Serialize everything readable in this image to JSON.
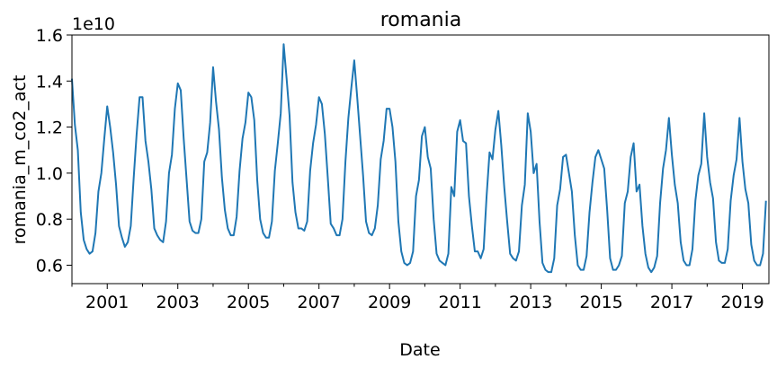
{
  "chart_data": {
    "type": "line",
    "title": "romania",
    "xlabel": "Date",
    "ylabel": "romania_m_co2_act",
    "y_scale_label": "1e10",
    "grid": false,
    "legend": "none",
    "line_color": "#1f77b4",
    "xlim": [
      "2000-01",
      "2019-10"
    ],
    "ylim": [
      0.52,
      1.6
    ],
    "x_ticks": [
      "2001",
      "2003",
      "2005",
      "2007",
      "2009",
      "2011",
      "2013",
      "2015",
      "2017",
      "2019"
    ],
    "y_ticks": [
      "0.6",
      "0.8",
      "1.0",
      "1.2",
      "1.4",
      "1.6"
    ],
    "series": [
      {
        "start": "2000-01",
        "frequency": "monthly",
        "values": [
          1.41,
          1.21,
          1.1,
          0.83,
          0.71,
          0.67,
          0.65,
          0.66,
          0.74,
          0.92,
          1.0,
          1.15,
          1.29,
          1.2,
          1.09,
          0.95,
          0.77,
          0.72,
          0.68,
          0.7,
          0.77,
          0.98,
          1.17,
          1.33,
          1.33,
          1.14,
          1.05,
          0.93,
          0.76,
          0.73,
          0.71,
          0.7,
          0.79,
          1.0,
          1.08,
          1.28,
          1.39,
          1.36,
          1.15,
          0.97,
          0.79,
          0.75,
          0.74,
          0.74,
          0.8,
          1.05,
          1.09,
          1.22,
          1.46,
          1.31,
          1.19,
          0.98,
          0.84,
          0.76,
          0.73,
          0.73,
          0.81,
          1.01,
          1.15,
          1.22,
          1.35,
          1.33,
          1.23,
          0.97,
          0.8,
          0.74,
          0.72,
          0.72,
          0.79,
          1.01,
          1.13,
          1.26,
          1.56,
          1.41,
          1.25,
          0.96,
          0.83,
          0.76,
          0.76,
          0.75,
          0.79,
          1.01,
          1.13,
          1.21,
          1.33,
          1.3,
          1.17,
          0.98,
          0.78,
          0.76,
          0.73,
          0.73,
          0.8,
          1.05,
          1.24,
          1.37,
          1.49,
          1.33,
          1.16,
          0.99,
          0.79,
          0.74,
          0.73,
          0.76,
          0.86,
          1.06,
          1.14,
          1.28,
          1.28,
          1.2,
          1.05,
          0.79,
          0.66,
          0.61,
          0.6,
          0.61,
          0.66,
          0.9,
          0.97,
          1.16,
          1.2,
          1.07,
          1.02,
          0.8,
          0.65,
          0.62,
          0.61,
          0.6,
          0.65,
          0.94,
          0.9,
          1.18,
          1.23,
          1.14,
          1.13,
          0.9,
          0.77,
          0.66,
          0.66,
          0.63,
          0.67,
          0.9,
          1.09,
          1.06,
          1.19,
          1.27,
          1.12,
          0.94,
          0.79,
          0.65,
          0.63,
          0.62,
          0.66,
          0.86,
          0.95,
          1.26,
          1.18,
          1.0,
          1.04,
          0.79,
          0.61,
          0.58,
          0.57,
          0.57,
          0.63,
          0.86,
          0.93,
          1.07,
          1.08,
          1.0,
          0.92,
          0.73,
          0.6,
          0.58,
          0.58,
          0.64,
          0.83,
          0.96,
          1.07,
          1.1,
          1.06,
          1.02,
          0.84,
          0.63,
          0.58,
          0.58,
          0.6,
          0.64,
          0.87,
          0.92,
          1.07,
          1.13,
          0.92,
          0.95,
          0.77,
          0.65,
          0.59,
          0.57,
          0.59,
          0.64,
          0.87,
          1.02,
          1.1,
          1.24,
          1.08,
          0.95,
          0.87,
          0.7,
          0.62,
          0.6,
          0.6,
          0.67,
          0.88,
          0.99,
          1.04,
          1.26,
          1.07,
          0.96,
          0.89,
          0.7,
          0.62,
          0.61,
          0.61,
          0.67,
          0.88,
          0.99,
          1.06,
          1.24,
          1.05,
          0.93,
          0.87,
          0.69,
          0.62,
          0.6,
          0.6,
          0.65,
          0.88
        ]
      }
    ]
  }
}
